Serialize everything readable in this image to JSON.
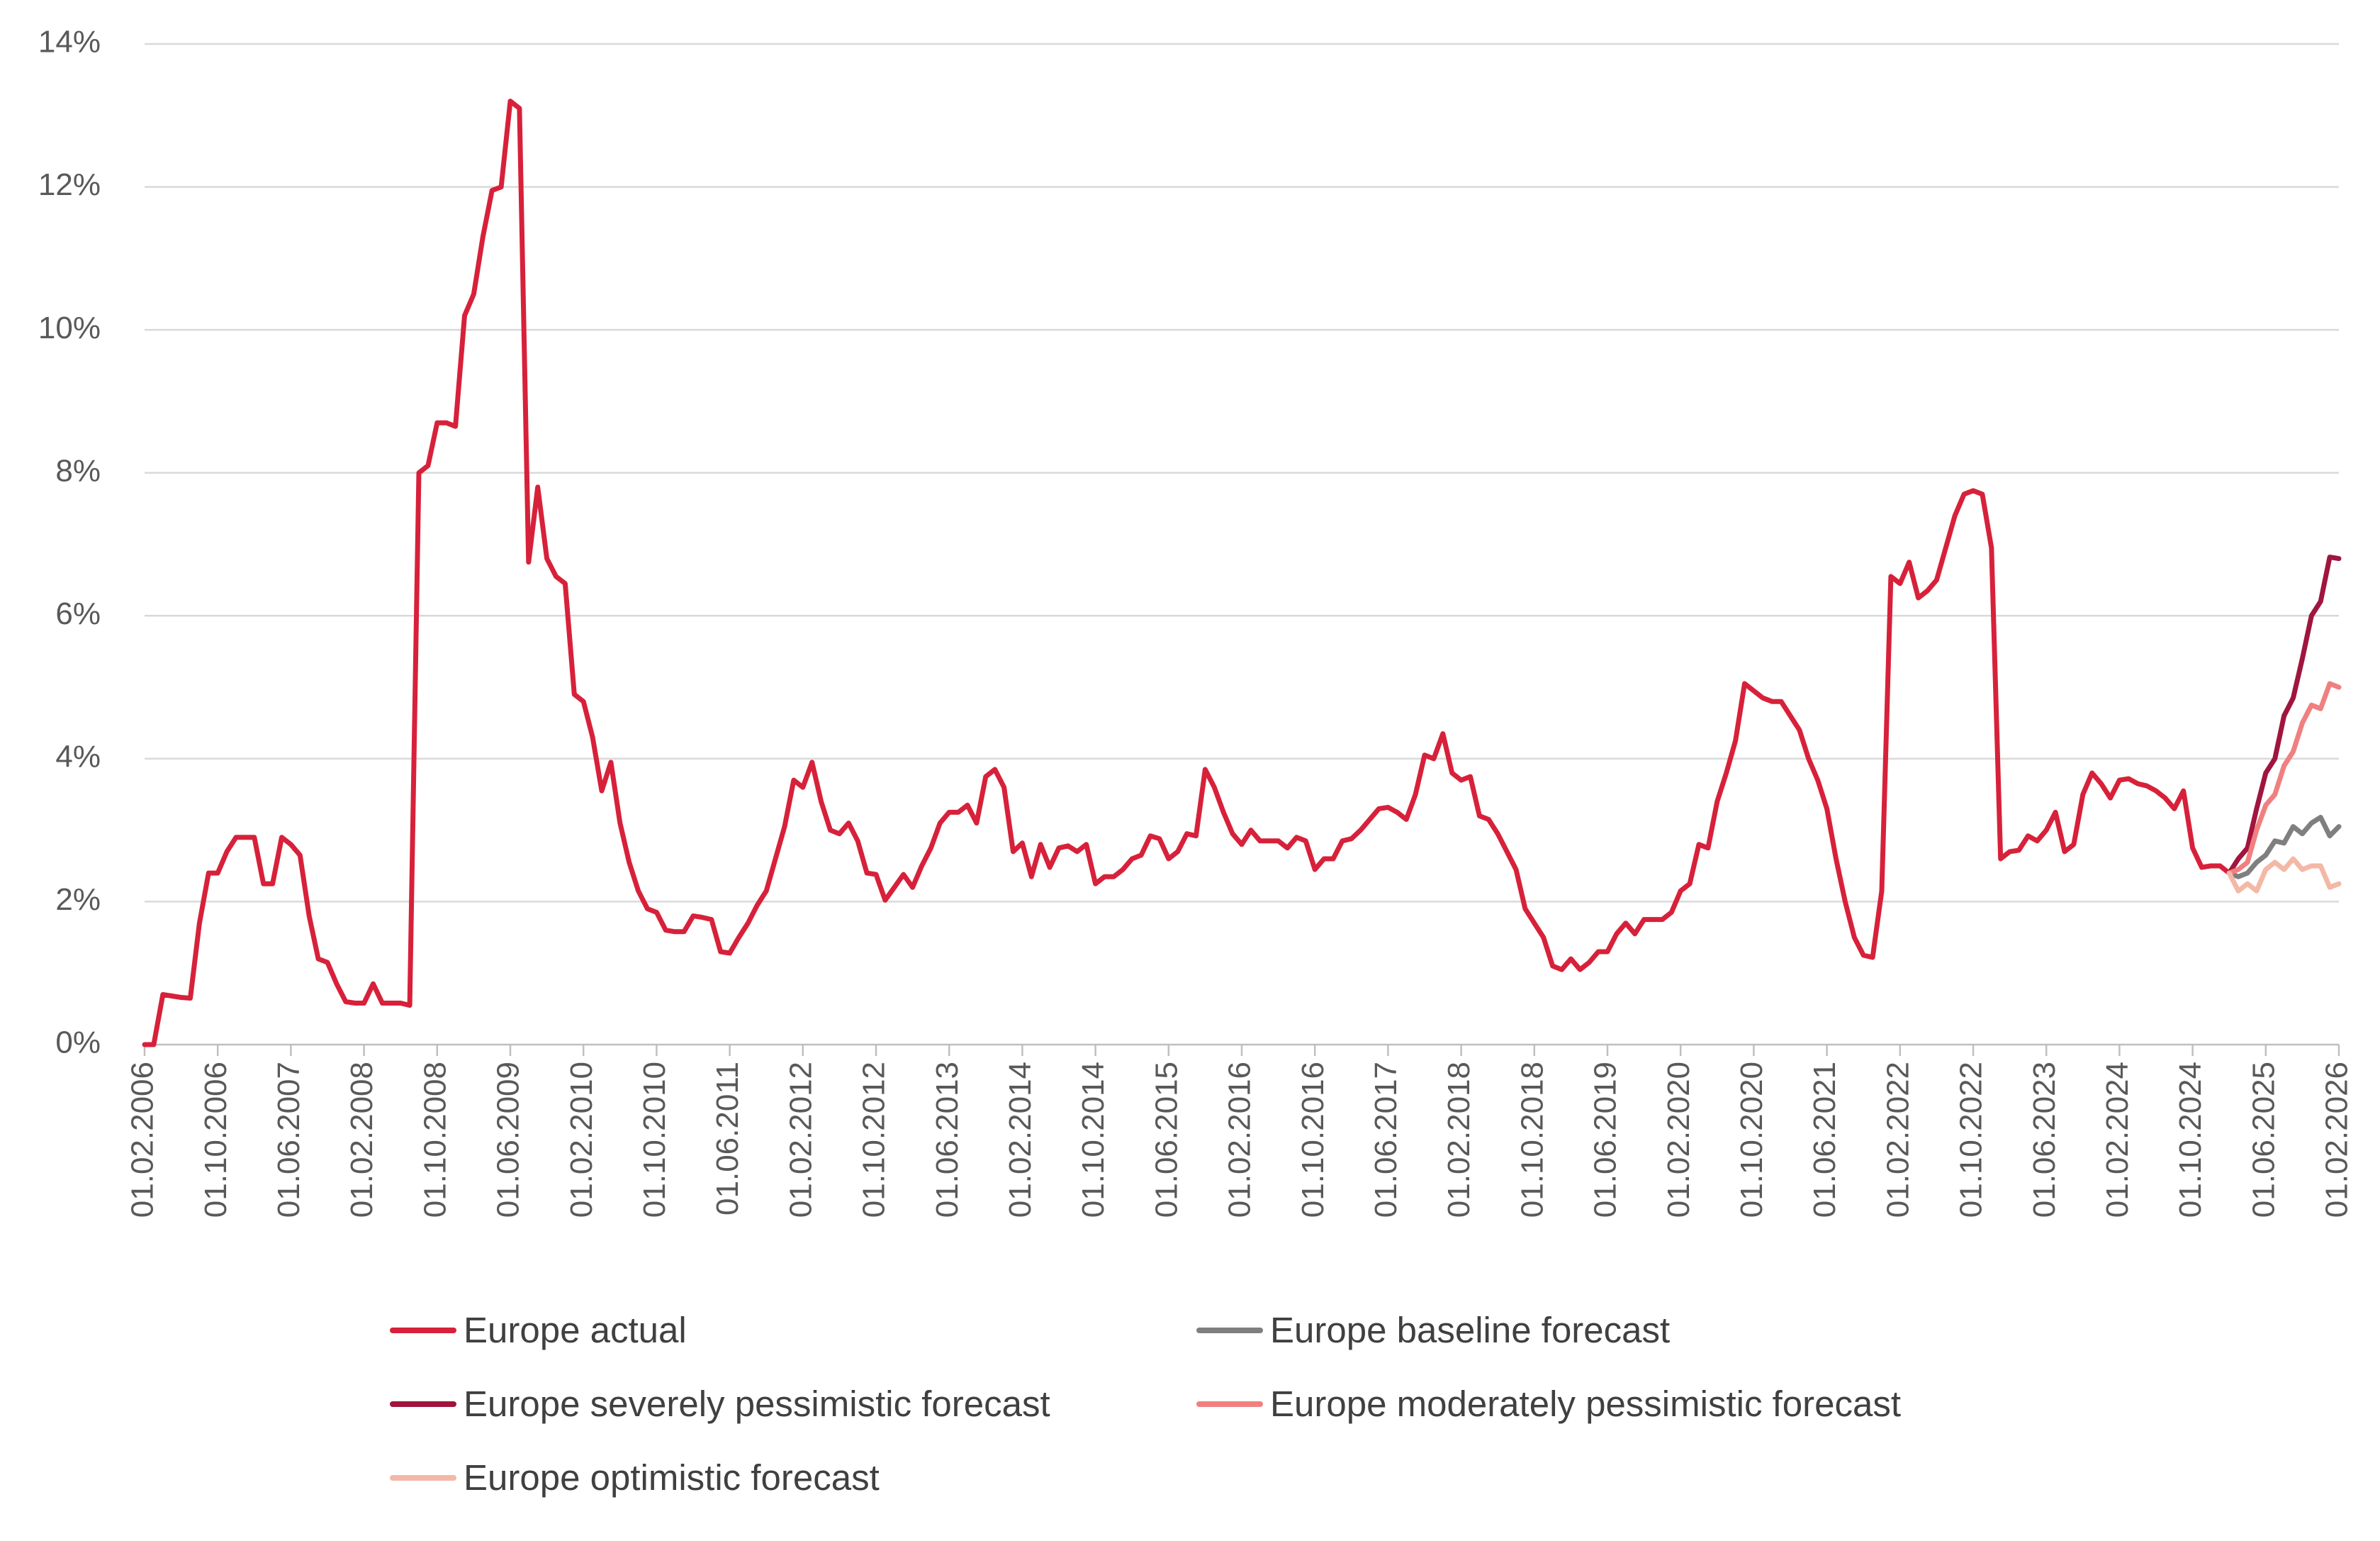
{
  "chart_data": {
    "type": "line",
    "title": "",
    "xlabel": "",
    "ylabel": "",
    "ylim": [
      0,
      14
    ],
    "y_ticks": [
      "0%",
      "2%",
      "4%",
      "6%",
      "8%",
      "10%",
      "12%",
      "14%"
    ],
    "x_ticks": [
      "01.02.2006",
      "01.10.2006",
      "01.06.2007",
      "01.02.2008",
      "01.10.2008",
      "01.06.2009",
      "01.02.2010",
      "01.10.2010",
      "01.06.2011",
      "01.02.2012",
      "01.10.2012",
      "01.06.2013",
      "01.02.2014",
      "01.10.2014",
      "01.06.2015",
      "01.02.2016",
      "01.10.2016",
      "01.06.2017",
      "01.02.2018",
      "01.10.2018",
      "01.06.2019",
      "01.02.2020",
      "01.10.2020",
      "01.06.2021",
      "01.02.2022",
      "01.10.2022",
      "01.06.2023",
      "01.02.2024",
      "01.10.2024",
      "01.06.2025",
      "01.02.2026"
    ],
    "x_range": [
      "2006-02",
      "2026-02"
    ],
    "grid": "horizontal",
    "legend_position": "bottom",
    "series": [
      {
        "name": "Europe actual",
        "color": "#d7213a",
        "points": [
          [
            "2006-02",
            0.0
          ],
          [
            "2006-03",
            0.0
          ],
          [
            "2006-04",
            0.7
          ],
          [
            "2006-05",
            0.68
          ],
          [
            "2006-06",
            0.66
          ],
          [
            "2006-07",
            0.65
          ],
          [
            "2006-08",
            1.7
          ],
          [
            "2006-09",
            2.4
          ],
          [
            "2006-10",
            2.4
          ],
          [
            "2006-11",
            2.7
          ],
          [
            "2006-12",
            2.9
          ],
          [
            "2007-01",
            2.9
          ],
          [
            "2007-02",
            2.9
          ],
          [
            "2007-03",
            2.25
          ],
          [
            "2007-04",
            2.25
          ],
          [
            "2007-05",
            2.9
          ],
          [
            "2007-06",
            2.8
          ],
          [
            "2007-07",
            2.65
          ],
          [
            "2007-08",
            1.8
          ],
          [
            "2007-09",
            1.2
          ],
          [
            "2007-10",
            1.15
          ],
          [
            "2007-11",
            0.85
          ],
          [
            "2007-12",
            0.6
          ],
          [
            "2008-01",
            0.58
          ],
          [
            "2008-02",
            0.58
          ],
          [
            "2008-03",
            0.85
          ],
          [
            "2008-04",
            0.58
          ],
          [
            "2008-05",
            0.58
          ],
          [
            "2008-06",
            0.58
          ],
          [
            "2008-07",
            0.55
          ],
          [
            "2008-08",
            8.0
          ],
          [
            "2008-09",
            8.1
          ],
          [
            "2008-10",
            8.7
          ],
          [
            "2008-11",
            8.7
          ],
          [
            "2008-12",
            8.65
          ],
          [
            "2009-01",
            10.2
          ],
          [
            "2009-02",
            10.5
          ],
          [
            "2009-03",
            11.3
          ],
          [
            "2009-04",
            11.95
          ],
          [
            "2009-05",
            12.0
          ],
          [
            "2009-06",
            13.2
          ],
          [
            "2009-07",
            13.1
          ],
          [
            "2009-08",
            6.75
          ],
          [
            "2009-09",
            7.8
          ],
          [
            "2009-10",
            6.8
          ],
          [
            "2009-11",
            6.55
          ],
          [
            "2009-12",
            6.45
          ],
          [
            "2010-01",
            4.9
          ],
          [
            "2010-02",
            4.8
          ],
          [
            "2010-03",
            4.3
          ],
          [
            "2010-04",
            3.55
          ],
          [
            "2010-05",
            3.95
          ],
          [
            "2010-06",
            3.1
          ],
          [
            "2010-07",
            2.55
          ],
          [
            "2010-08",
            2.15
          ],
          [
            "2010-09",
            1.9
          ],
          [
            "2010-10",
            1.85
          ],
          [
            "2010-11",
            1.6
          ],
          [
            "2010-12",
            1.58
          ],
          [
            "2011-01",
            1.58
          ],
          [
            "2011-02",
            1.8
          ],
          [
            "2011-03",
            1.78
          ],
          [
            "2011-04",
            1.75
          ],
          [
            "2011-05",
            1.3
          ],
          [
            "2011-06",
            1.28
          ],
          [
            "2011-07",
            1.5
          ],
          [
            "2011-08",
            1.7
          ],
          [
            "2011-09",
            1.95
          ],
          [
            "2011-10",
            2.15
          ],
          [
            "2011-11",
            2.6
          ],
          [
            "2011-12",
            3.05
          ],
          [
            "2012-01",
            3.7
          ],
          [
            "2012-02",
            3.6
          ],
          [
            "2012-03",
            3.95
          ],
          [
            "2012-04",
            3.4
          ],
          [
            "2012-05",
            3.0
          ],
          [
            "2012-06",
            2.95
          ],
          [
            "2012-07",
            3.1
          ],
          [
            "2012-08",
            2.85
          ],
          [
            "2012-09",
            2.4
          ],
          [
            "2012-10",
            2.38
          ],
          [
            "2012-11",
            2.02
          ],
          [
            "2012-12",
            2.2
          ],
          [
            "2013-01",
            2.38
          ],
          [
            "2013-02",
            2.2
          ],
          [
            "2013-03",
            2.5
          ],
          [
            "2013-04",
            2.75
          ],
          [
            "2013-05",
            3.1
          ],
          [
            "2013-06",
            3.25
          ],
          [
            "2013-07",
            3.25
          ],
          [
            "2013-08",
            3.35
          ],
          [
            "2013-09",
            3.1
          ],
          [
            "2013-10",
            3.75
          ],
          [
            "2013-11",
            3.85
          ],
          [
            "2013-12",
            3.6
          ],
          [
            "2014-01",
            2.7
          ],
          [
            "2014-02",
            2.82
          ],
          [
            "2014-03",
            2.35
          ],
          [
            "2014-04",
            2.8
          ],
          [
            "2014-05",
            2.48
          ],
          [
            "2014-06",
            2.75
          ],
          [
            "2014-07",
            2.78
          ],
          [
            "2014-08",
            2.7
          ],
          [
            "2014-09",
            2.8
          ],
          [
            "2014-10",
            2.25
          ],
          [
            "2014-11",
            2.35
          ],
          [
            "2014-12",
            2.35
          ],
          [
            "2015-01",
            2.45
          ],
          [
            "2015-02",
            2.6
          ],
          [
            "2015-03",
            2.65
          ],
          [
            "2015-04",
            2.92
          ],
          [
            "2015-05",
            2.88
          ],
          [
            "2015-06",
            2.6
          ],
          [
            "2015-07",
            2.7
          ],
          [
            "2015-08",
            2.95
          ],
          [
            "2015-09",
            2.92
          ],
          [
            "2015-10",
            3.85
          ],
          [
            "2015-11",
            3.6
          ],
          [
            "2015-12",
            3.25
          ],
          [
            "2016-01",
            2.95
          ],
          [
            "2016-02",
            2.8
          ],
          [
            "2016-03",
            3.0
          ],
          [
            "2016-04",
            2.85
          ],
          [
            "2016-05",
            2.85
          ],
          [
            "2016-06",
            2.85
          ],
          [
            "2016-07",
            2.75
          ],
          [
            "2016-08",
            2.9
          ],
          [
            "2016-09",
            2.85
          ],
          [
            "2016-10",
            2.45
          ],
          [
            "2016-11",
            2.6
          ],
          [
            "2016-12",
            2.6
          ],
          [
            "2017-01",
            2.85
          ],
          [
            "2017-02",
            2.88
          ],
          [
            "2017-03",
            3.0
          ],
          [
            "2017-04",
            3.15
          ],
          [
            "2017-05",
            3.3
          ],
          [
            "2017-06",
            3.32
          ],
          [
            "2017-07",
            3.25
          ],
          [
            "2017-08",
            3.15
          ],
          [
            "2017-09",
            3.5
          ],
          [
            "2017-10",
            4.05
          ],
          [
            "2017-11",
            4.0
          ],
          [
            "2017-12",
            4.35
          ],
          [
            "2018-01",
            3.8
          ],
          [
            "2018-02",
            3.7
          ],
          [
            "2018-03",
            3.75
          ],
          [
            "2018-04",
            3.2
          ],
          [
            "2018-05",
            3.15
          ],
          [
            "2018-06",
            2.95
          ],
          [
            "2018-07",
            2.7
          ],
          [
            "2018-08",
            2.45
          ],
          [
            "2018-09",
            1.9
          ],
          [
            "2018-10",
            1.7
          ],
          [
            "2018-11",
            1.5
          ],
          [
            "2018-12",
            1.1
          ],
          [
            "2019-01",
            1.05
          ],
          [
            "2019-02",
            1.2
          ],
          [
            "2019-03",
            1.05
          ],
          [
            "2019-04",
            1.15
          ],
          [
            "2019-05",
            1.3
          ],
          [
            "2019-06",
            1.3
          ],
          [
            "2019-07",
            1.55
          ],
          [
            "2019-08",
            1.7
          ],
          [
            "2019-09",
            1.55
          ],
          [
            "2019-10",
            1.75
          ],
          [
            "2019-11",
            1.75
          ],
          [
            "2019-12",
            1.75
          ],
          [
            "2020-01",
            1.85
          ],
          [
            "2020-02",
            2.15
          ],
          [
            "2020-03",
            2.25
          ],
          [
            "2020-04",
            2.8
          ],
          [
            "2020-05",
            2.75
          ],
          [
            "2020-06",
            3.4
          ],
          [
            "2020-07",
            3.8
          ],
          [
            "2020-08",
            4.25
          ],
          [
            "2020-09",
            5.05
          ],
          [
            "2020-10",
            4.95
          ],
          [
            "2020-11",
            4.85
          ],
          [
            "2020-12",
            4.8
          ],
          [
            "2021-01",
            4.8
          ],
          [
            "2021-02",
            4.6
          ],
          [
            "2021-03",
            4.4
          ],
          [
            "2021-04",
            4.0
          ],
          [
            "2021-05",
            3.7
          ],
          [
            "2021-06",
            3.3
          ],
          [
            "2021-07",
            2.6
          ],
          [
            "2021-08",
            2.0
          ],
          [
            "2021-09",
            1.5
          ],
          [
            "2021-10",
            1.25
          ],
          [
            "2021-11",
            1.22
          ],
          [
            "2021-12",
            2.15
          ],
          [
            "2022-01",
            6.55
          ],
          [
            "2022-02",
            6.45
          ],
          [
            "2022-03",
            6.75
          ],
          [
            "2022-04",
            6.25
          ],
          [
            "2022-05",
            6.35
          ],
          [
            "2022-06",
            6.5
          ],
          [
            "2022-07",
            6.95
          ],
          [
            "2022-08",
            7.4
          ],
          [
            "2022-09",
            7.7
          ],
          [
            "2022-10",
            7.75
          ],
          [
            "2022-11",
            7.7
          ],
          [
            "2022-12",
            6.95
          ],
          [
            "2023-01",
            2.6
          ],
          [
            "2023-02",
            2.7
          ],
          [
            "2023-03",
            2.72
          ],
          [
            "2023-04",
            2.92
          ],
          [
            "2023-05",
            2.85
          ],
          [
            "2023-06",
            3.0
          ],
          [
            "2023-07",
            3.25
          ],
          [
            "2023-08",
            2.7
          ],
          [
            "2023-09",
            2.8
          ],
          [
            "2023-10",
            3.5
          ],
          [
            "2023-11",
            3.8
          ],
          [
            "2023-12",
            3.65
          ],
          [
            "2024-01",
            3.45
          ],
          [
            "2024-02",
            3.7
          ],
          [
            "2024-03",
            3.72
          ],
          [
            "2024-04",
            3.65
          ],
          [
            "2024-05",
            3.62
          ],
          [
            "2024-06",
            3.55
          ],
          [
            "2024-07",
            3.45
          ],
          [
            "2024-08",
            3.3
          ],
          [
            "2024-09",
            3.55
          ],
          [
            "2024-10",
            2.75
          ],
          [
            "2024-11",
            2.48
          ],
          [
            "2024-12",
            2.5
          ],
          [
            "2025-01",
            2.5
          ],
          [
            "2025-02",
            2.4
          ]
        ]
      },
      {
        "name": "Europe baseline forecast",
        "color": "#7f7f7f",
        "points": [
          [
            "2025-02",
            2.4
          ],
          [
            "2025-03",
            2.35
          ],
          [
            "2025-04",
            2.4
          ],
          [
            "2025-05",
            2.55
          ],
          [
            "2025-06",
            2.65
          ],
          [
            "2025-07",
            2.85
          ],
          [
            "2025-08",
            2.82
          ],
          [
            "2025-09",
            3.05
          ],
          [
            "2025-10",
            2.95
          ],
          [
            "2025-11",
            3.1
          ],
          [
            "2025-12",
            3.18
          ],
          [
            "2026-01",
            2.92
          ],
          [
            "2026-02",
            3.05
          ]
        ]
      },
      {
        "name": "Europe severely pessimistic forecast",
        "color": "#a0153e",
        "points": [
          [
            "2025-02",
            2.4
          ],
          [
            "2025-03",
            2.6
          ],
          [
            "2025-04",
            2.75
          ],
          [
            "2025-05",
            3.3
          ],
          [
            "2025-06",
            3.8
          ],
          [
            "2025-07",
            4.0
          ],
          [
            "2025-08",
            4.6
          ],
          [
            "2025-09",
            4.85
          ],
          [
            "2025-10",
            5.4
          ],
          [
            "2025-11",
            6.0
          ],
          [
            "2025-12",
            6.2
          ],
          [
            "2026-01",
            6.82
          ],
          [
            "2026-02",
            6.8
          ]
        ]
      },
      {
        "name": "Europe moderately pessimistic forecast",
        "color": "#f08080",
        "points": [
          [
            "2025-02",
            2.4
          ],
          [
            "2025-03",
            2.45
          ],
          [
            "2025-04",
            2.55
          ],
          [
            "2025-05",
            3.0
          ],
          [
            "2025-06",
            3.35
          ],
          [
            "2025-07",
            3.5
          ],
          [
            "2025-08",
            3.9
          ],
          [
            "2025-09",
            4.1
          ],
          [
            "2025-10",
            4.5
          ],
          [
            "2025-11",
            4.75
          ],
          [
            "2025-12",
            4.7
          ],
          [
            "2026-01",
            5.05
          ],
          [
            "2026-02",
            5.0
          ]
        ]
      },
      {
        "name": "Europe optimistic forecast",
        "color": "#f4b8a6",
        "points": [
          [
            "2025-02",
            2.4
          ],
          [
            "2025-03",
            2.15
          ],
          [
            "2025-04",
            2.25
          ],
          [
            "2025-05",
            2.15
          ],
          [
            "2025-06",
            2.45
          ],
          [
            "2025-07",
            2.55
          ],
          [
            "2025-08",
            2.45
          ],
          [
            "2025-09",
            2.6
          ],
          [
            "2025-10",
            2.45
          ],
          [
            "2025-11",
            2.5
          ],
          [
            "2025-12",
            2.5
          ],
          [
            "2026-01",
            2.2
          ],
          [
            "2026-02",
            2.25
          ]
        ]
      }
    ]
  }
}
